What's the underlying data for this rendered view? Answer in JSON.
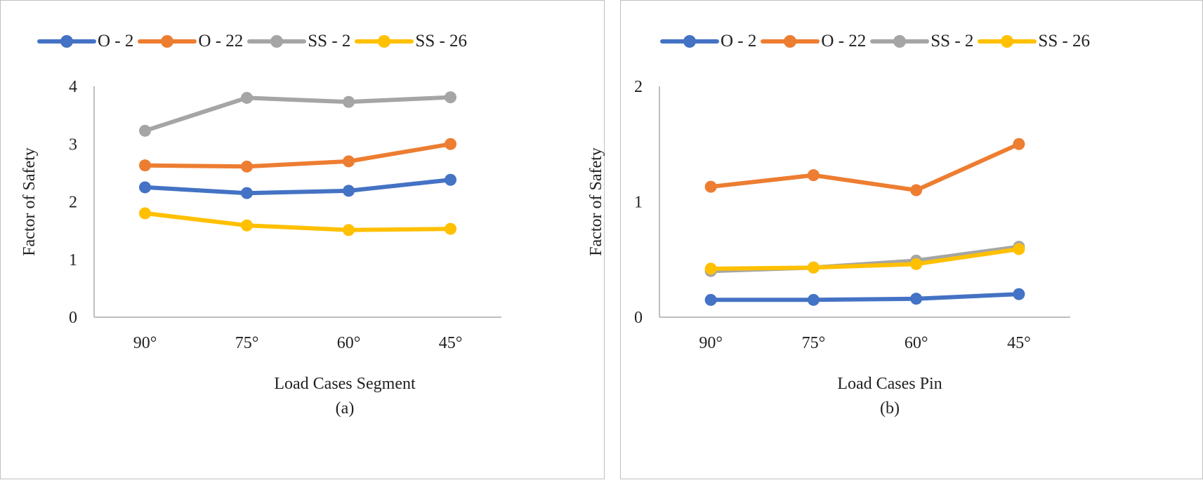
{
  "chart_data": [
    {
      "type": "line",
      "categories": [
        "90°",
        "75°",
        "60°",
        "45°"
      ],
      "series": [
        {
          "name": "O - 2",
          "color": "#4472c4",
          "values": [
            2.25,
            2.15,
            2.19,
            2.38
          ]
        },
        {
          "name": "O - 22",
          "color": "#ed7d31",
          "values": [
            2.63,
            2.61,
            2.7,
            3.0
          ]
        },
        {
          "name": "SS - 2",
          "color": "#a5a5a5",
          "values": [
            3.23,
            3.8,
            3.73,
            3.81
          ]
        },
        {
          "name": "SS - 26",
          "color": "#ffc000",
          "values": [
            1.8,
            1.59,
            1.51,
            1.53
          ]
        }
      ],
      "ylim": [
        0,
        4
      ],
      "yticks": [
        "0",
        "1",
        "2",
        "3",
        "4"
      ],
      "xlabel": "Load Cases Segment",
      "ylabel": "Factor of Safety",
      "caption": "(a)",
      "legend": "top",
      "grid": false
    },
    {
      "type": "line",
      "categories": [
        "90°",
        "75°",
        "60°",
        "45°"
      ],
      "series": [
        {
          "name": "O - 2",
          "color": "#4472c4",
          "values": [
            0.15,
            0.15,
            0.16,
            0.2
          ]
        },
        {
          "name": "O - 22",
          "color": "#ed7d31",
          "values": [
            1.13,
            1.23,
            1.1,
            1.5
          ]
        },
        {
          "name": "SS - 2",
          "color": "#a5a5a5",
          "values": [
            0.4,
            0.43,
            0.49,
            0.61
          ]
        },
        {
          "name": "SS - 26",
          "color": "#ffc000",
          "values": [
            0.42,
            0.43,
            0.46,
            0.59
          ]
        }
      ],
      "ylim": [
        0,
        2
      ],
      "yticks": [
        "0",
        "1",
        "2"
      ],
      "xlabel": "Load Cases Pin",
      "ylabel": "Factor of Safety",
      "caption": "(b)",
      "legend": "top",
      "grid": false
    }
  ]
}
